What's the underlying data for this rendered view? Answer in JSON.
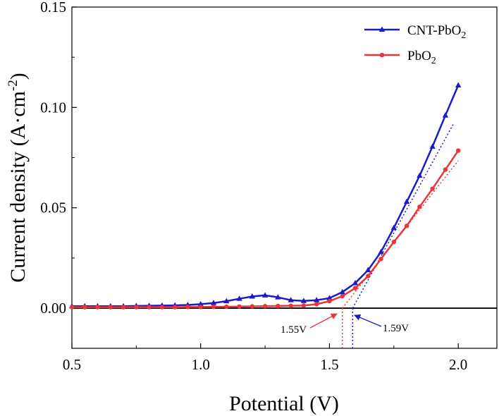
{
  "chart_data": {
    "type": "line",
    "xlabel": "Potential (V)",
    "ylabel": "Current density (A·cm⁻²)",
    "xlim": [
      0.5,
      2.15
    ],
    "ylim": [
      -0.02,
      0.15
    ],
    "xticks": [
      0.5,
      1.0,
      1.5,
      2.0
    ],
    "yticks": [
      0.0,
      0.05,
      0.1,
      0.15
    ],
    "xtick_labels": [
      "0.5",
      "1.0",
      "1.5",
      "2.0"
    ],
    "ytick_labels": [
      "0.00",
      "0.05",
      "0.10",
      "0.15"
    ],
    "grid": false,
    "legend_position": "top-right",
    "series": [
      {
        "name": "CNT-PbO2",
        "color": "#1a1acc",
        "marker": "triangle",
        "x": [
          0.5,
          0.55,
          0.6,
          0.65,
          0.7,
          0.75,
          0.8,
          0.85,
          0.9,
          0.95,
          1.0,
          1.05,
          1.1,
          1.15,
          1.2,
          1.25,
          1.3,
          1.35,
          1.4,
          1.45,
          1.5,
          1.55,
          1.6,
          1.65,
          1.7,
          1.75,
          1.8,
          1.85,
          1.9,
          1.95,
          2.0
        ],
        "y": [
          0.001,
          0.001,
          0.001,
          0.001,
          0.001,
          0.0011,
          0.0012,
          0.0013,
          0.0014,
          0.0016,
          0.002,
          0.0026,
          0.0035,
          0.0047,
          0.0058,
          0.0064,
          0.0054,
          0.004,
          0.0036,
          0.004,
          0.005,
          0.008,
          0.0125,
          0.019,
          0.028,
          0.04,
          0.053,
          0.066,
          0.0805,
          0.096,
          0.111
        ]
      },
      {
        "name": "PbO2",
        "color": "#e8363a",
        "marker": "circle",
        "x": [
          0.5,
          0.55,
          0.6,
          0.65,
          0.7,
          0.75,
          0.8,
          0.85,
          0.9,
          0.95,
          1.0,
          1.05,
          1.1,
          1.15,
          1.2,
          1.25,
          1.3,
          1.35,
          1.4,
          1.45,
          1.5,
          1.55,
          1.6,
          1.65,
          1.7,
          1.75,
          1.8,
          1.85,
          1.9,
          1.95,
          2.0
        ],
        "y": [
          0.0005,
          0.0005,
          0.0005,
          0.0005,
          0.0005,
          0.0005,
          0.0005,
          0.0005,
          0.0005,
          0.0006,
          0.0006,
          0.0007,
          0.0007,
          0.0008,
          0.0009,
          0.001,
          0.0011,
          0.0012,
          0.0013,
          0.002,
          0.0035,
          0.006,
          0.01,
          0.016,
          0.0245,
          0.033,
          0.041,
          0.0505,
          0.0595,
          0.069,
          0.0785
        ]
      }
    ],
    "tangent_lines": [
      {
        "series": "CNT-PbO2",
        "color": "#1a1acc",
        "x": [
          1.59,
          1.98
        ],
        "y": [
          0.0,
          0.0915
        ]
      },
      {
        "series": "PbO2",
        "color": "#e8363a",
        "x": [
          1.55,
          2.0
        ],
        "y": [
          0.0,
          0.0735
        ]
      }
    ],
    "drop_lines": [
      {
        "color": "#e8363a",
        "x": 1.55
      },
      {
        "color": "#1a1acc",
        "x": 1.59
      }
    ],
    "annotations": [
      {
        "text": "1.55V",
        "color": "#e8363a",
        "x": 1.55
      },
      {
        "text": "1.59V",
        "color": "#1a1acc",
        "x": 1.59
      }
    ],
    "legend": {
      "entries": [
        {
          "base": "CNT-PbO",
          "sub": "2"
        },
        {
          "base": "PbO",
          "sub": "2"
        }
      ]
    },
    "ylabel_parts": {
      "main": "Current density (A·cm",
      "sup": "-2",
      "tail": ")"
    }
  }
}
